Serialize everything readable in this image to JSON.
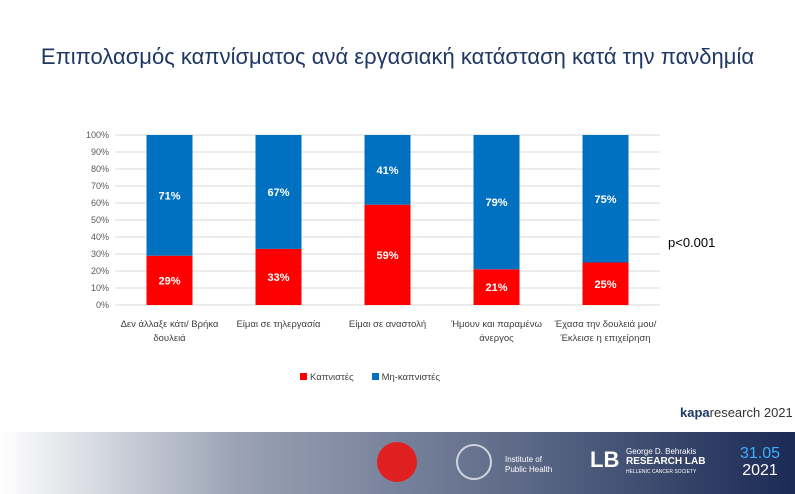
{
  "chart_data": {
    "type": "bar",
    "stacked": true,
    "title": "Επιπολασμός καπνίσματος ανά εργασιακή κατάσταση κατά την πανδημία",
    "categories": [
      "Δεν άλλαξε κάτι/ Βρήκα δουλειά",
      "Είμαι σε τηλεργασία",
      "Είμαι σε αναστολή",
      "Ήμουν και παραμένω άνεργος",
      "Έχασα την δουλειά μου/Έκλεισε η επιχείρηση"
    ],
    "series": [
      {
        "name": "Καπνιστές",
        "color": "#ff0000",
        "values": [
          29,
          33,
          59,
          21,
          25
        ]
      },
      {
        "name": "Μη-καπνιστές",
        "color": "#0070c0",
        "values": [
          71,
          67,
          41,
          79,
          75
        ]
      }
    ],
    "ylim": [
      0,
      100
    ],
    "yticks": [
      "0%",
      "10%",
      "20%",
      "30%",
      "40%",
      "50%",
      "60%",
      "70%",
      "80%",
      "90%",
      "100%"
    ],
    "legend": "bottom",
    "annotation": "p<0.001"
  },
  "footer": {
    "brand": "kapa",
    "brand2": "research",
    "year": "2021",
    "institute": "Institute of Public Health",
    "lab_name": "George D. Behrakis",
    "lab_title": "RESEARCH LAB",
    "lab_sub": "HELLENIC CANCER SOCIETY",
    "date1": "31.05",
    "date2": "2021"
  }
}
